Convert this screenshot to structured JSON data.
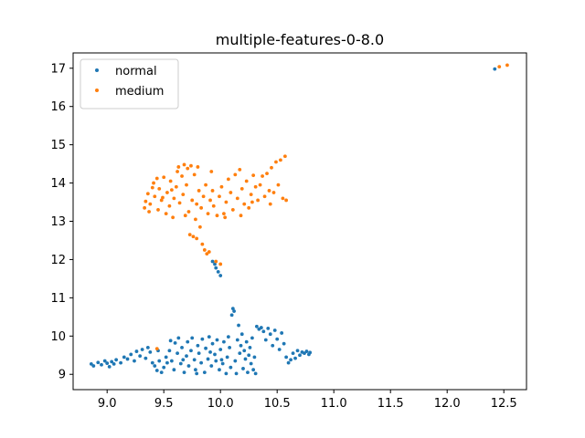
{
  "chart_data": {
    "type": "scatter",
    "title": "multiple-features-0-8.0",
    "xlabel": "",
    "ylabel": "",
    "xlim": [
      8.7,
      12.7
    ],
    "ylim": [
      8.6,
      17.4
    ],
    "xticks": [
      "9.0",
      "9.5",
      "10.0",
      "10.5",
      "11.0",
      "11.5",
      "12.0",
      "12.5"
    ],
    "yticks": [
      "9",
      "10",
      "11",
      "12",
      "13",
      "14",
      "15",
      "16",
      "17"
    ],
    "grid": false,
    "legend": {
      "position": "top-left",
      "entries": [
        "normal",
        "medium"
      ]
    },
    "series": [
      {
        "name": "normal",
        "color": "#1f77b4",
        "points": [
          [
            8.86,
            9.27
          ],
          [
            8.88,
            9.22
          ],
          [
            8.92,
            9.31
          ],
          [
            8.95,
            9.25
          ],
          [
            8.98,
            9.35
          ],
          [
            9.0,
            9.29
          ],
          [
            9.02,
            9.2
          ],
          [
            9.04,
            9.33
          ],
          [
            9.06,
            9.27
          ],
          [
            9.08,
            9.38
          ],
          [
            9.12,
            9.3
          ],
          [
            9.15,
            9.45
          ],
          [
            9.18,
            9.4
          ],
          [
            9.21,
            9.52
          ],
          [
            9.24,
            9.35
          ],
          [
            9.26,
            9.6
          ],
          [
            9.29,
            9.48
          ],
          [
            9.31,
            9.65
          ],
          [
            9.34,
            9.42
          ],
          [
            9.36,
            9.7
          ],
          [
            9.38,
            9.58
          ],
          [
            9.4,
            9.3
          ],
          [
            9.42,
            9.22
          ],
          [
            9.44,
            9.1
          ],
          [
            9.46,
            9.35
          ],
          [
            9.48,
            9.05
          ],
          [
            9.5,
            9.18
          ],
          [
            9.52,
            9.45
          ],
          [
            9.55,
            9.62
          ],
          [
            9.57,
            9.35
          ],
          [
            9.59,
            9.12
          ],
          [
            9.6,
            9.82
          ],
          [
            9.62,
            9.55
          ],
          [
            9.63,
            9.95
          ],
          [
            9.65,
            9.28
          ],
          [
            9.66,
            9.7
          ],
          [
            9.68,
            9.05
          ],
          [
            9.7,
            9.48
          ],
          [
            9.71,
            9.85
          ],
          [
            9.72,
            9.22
          ],
          [
            9.74,
            9.62
          ],
          [
            9.75,
            9.95
          ],
          [
            9.77,
            9.38
          ],
          [
            9.78,
            9.12
          ],
          [
            9.8,
            9.75
          ],
          [
            9.81,
            9.55
          ],
          [
            9.83,
            9.3
          ],
          [
            9.84,
            9.92
          ],
          [
            9.86,
            9.05
          ],
          [
            9.87,
            9.68
          ],
          [
            9.89,
            9.4
          ],
          [
            9.9,
            9.98
          ],
          [
            9.92,
            9.22
          ],
          [
            9.93,
            9.8
          ],
          [
            9.95,
            9.52
          ],
          [
            9.96,
            9.35
          ],
          [
            9.97,
            9.9
          ],
          [
            9.99,
            9.12
          ],
          [
            10.0,
            9.65
          ],
          [
            10.02,
            9.28
          ],
          [
            10.03,
            9.85
          ],
          [
            10.05,
            9.02
          ],
          [
            10.06,
            9.45
          ],
          [
            10.08,
            9.7
          ],
          [
            10.09,
            9.18
          ],
          [
            10.1,
            10.55
          ],
          [
            10.11,
            10.72
          ],
          [
            10.12,
            10.65
          ],
          [
            10.13,
            9.35
          ],
          [
            10.14,
            9.02
          ],
          [
            10.15,
            9.9
          ],
          [
            10.16,
            10.28
          ],
          [
            10.17,
            9.55
          ],
          [
            10.18,
            9.75
          ],
          [
            10.19,
            10.05
          ],
          [
            10.2,
            9.15
          ],
          [
            10.21,
            9.62
          ],
          [
            10.22,
            9.4
          ],
          [
            10.23,
            9.85
          ],
          [
            10.24,
            9.05
          ],
          [
            10.25,
            9.5
          ],
          [
            10.26,
            9.7
          ],
          [
            10.27,
            9.28
          ],
          [
            10.28,
            9.95
          ],
          [
            10.29,
            9.12
          ],
          [
            10.3,
            9.45
          ],
          [
            10.31,
            9.02
          ],
          [
            10.32,
            10.25
          ],
          [
            10.34,
            10.18
          ],
          [
            10.36,
            10.22
          ],
          [
            10.38,
            10.12
          ],
          [
            10.4,
            9.9
          ],
          [
            10.42,
            10.2
          ],
          [
            10.44,
            10.05
          ],
          [
            10.46,
            9.75
          ],
          [
            10.48,
            10.15
          ],
          [
            10.5,
            9.92
          ],
          [
            10.52,
            9.65
          ],
          [
            10.54,
            10.08
          ],
          [
            10.56,
            9.8
          ],
          [
            10.58,
            9.45
          ],
          [
            10.6,
            9.3
          ],
          [
            10.62,
            9.38
          ],
          [
            10.64,
            9.55
          ],
          [
            10.66,
            9.42
          ],
          [
            10.68,
            9.62
          ],
          [
            10.7,
            9.5
          ],
          [
            10.72,
            9.58
          ],
          [
            10.74,
            9.55
          ],
          [
            10.76,
            9.6
          ],
          [
            10.78,
            9.52
          ],
          [
            10.79,
            9.57
          ],
          [
            9.45,
            9.62
          ],
          [
            9.53,
            9.3
          ],
          [
            9.67,
            9.38
          ],
          [
            9.79,
            9.02
          ],
          [
            9.91,
            9.58
          ],
          [
            10.01,
            9.38
          ],
          [
            10.07,
            9.98
          ],
          [
            9.56,
            9.88
          ],
          [
            9.95,
            11.88
          ],
          [
            9.96,
            11.78
          ],
          [
            9.98,
            11.68
          ],
          [
            10.0,
            11.58
          ],
          [
            9.93,
            11.95
          ],
          [
            12.42,
            16.98
          ]
        ]
      },
      {
        "name": "medium",
        "color": "#ff7f0e",
        "points": [
          [
            9.33,
            13.35
          ],
          [
            9.34,
            13.52
          ],
          [
            9.36,
            13.72
          ],
          [
            9.38,
            13.45
          ],
          [
            9.4,
            13.88
          ],
          [
            9.41,
            14.0
          ],
          [
            9.42,
            13.65
          ],
          [
            9.44,
            14.12
          ],
          [
            9.45,
            13.3
          ],
          [
            9.46,
            13.85
          ],
          [
            9.48,
            13.55
          ],
          [
            9.5,
            14.15
          ],
          [
            9.52,
            13.2
          ],
          [
            9.53,
            13.75
          ],
          [
            9.55,
            13.4
          ],
          [
            9.56,
            14.05
          ],
          [
            9.58,
            13.1
          ],
          [
            9.59,
            13.6
          ],
          [
            9.61,
            13.9
          ],
          [
            9.62,
            14.3
          ],
          [
            9.63,
            14.42
          ],
          [
            9.64,
            13.48
          ],
          [
            9.66,
            14.18
          ],
          [
            9.67,
            13.7
          ],
          [
            9.68,
            14.48
          ],
          [
            9.7,
            13.95
          ],
          [
            9.71,
            14.38
          ],
          [
            9.72,
            13.25
          ],
          [
            9.73,
            12.65
          ],
          [
            9.74,
            14.45
          ],
          [
            9.75,
            13.55
          ],
          [
            9.76,
            12.6
          ],
          [
            9.77,
            14.22
          ],
          [
            9.78,
            13.05
          ],
          [
            9.79,
            12.55
          ],
          [
            9.8,
            14.42
          ],
          [
            9.81,
            13.8
          ],
          [
            9.82,
            12.85
          ],
          [
            9.83,
            13.35
          ],
          [
            9.84,
            12.4
          ],
          [
            9.85,
            13.65
          ],
          [
            9.86,
            12.25
          ],
          [
            9.87,
            13.95
          ],
          [
            9.88,
            12.15
          ],
          [
            9.89,
            13.2
          ],
          [
            9.9,
            12.2
          ],
          [
            9.91,
            13.55
          ],
          [
            9.93,
            13.8
          ],
          [
            9.94,
            13.4
          ],
          [
            9.96,
            11.95
          ],
          [
            9.97,
            13.15
          ],
          [
            9.99,
            13.65
          ],
          [
            10.0,
            11.88
          ],
          [
            10.01,
            13.9
          ],
          [
            10.03,
            13.2
          ],
          [
            10.05,
            13.5
          ],
          [
            10.07,
            14.1
          ],
          [
            10.09,
            13.75
          ],
          [
            10.11,
            13.3
          ],
          [
            10.13,
            14.22
          ],
          [
            10.15,
            13.6
          ],
          [
            10.17,
            14.35
          ],
          [
            10.19,
            13.85
          ],
          [
            10.21,
            13.45
          ],
          [
            10.23,
            14.05
          ],
          [
            10.25,
            13.35
          ],
          [
            10.27,
            13.7
          ],
          [
            10.29,
            14.2
          ],
          [
            10.31,
            13.9
          ],
          [
            10.33,
            13.55
          ],
          [
            10.35,
            13.95
          ],
          [
            10.37,
            14.18
          ],
          [
            10.39,
            13.65
          ],
          [
            10.41,
            14.25
          ],
          [
            10.43,
            13.8
          ],
          [
            10.45,
            14.4
          ],
          [
            10.47,
            13.75
          ],
          [
            10.49,
            14.55
          ],
          [
            10.51,
            13.95
          ],
          [
            10.53,
            14.6
          ],
          [
            10.55,
            13.6
          ],
          [
            10.57,
            14.7
          ],
          [
            10.58,
            13.55
          ],
          [
            9.37,
            13.25
          ],
          [
            9.49,
            13.62
          ],
          [
            9.57,
            13.82
          ],
          [
            9.69,
            13.15
          ],
          [
            9.79,
            13.45
          ],
          [
            9.92,
            14.3
          ],
          [
            10.04,
            13.1
          ],
          [
            10.18,
            13.15
          ],
          [
            10.28,
            13.5
          ],
          [
            10.44,
            13.45
          ],
          [
            9.44,
            9.67
          ],
          [
            12.46,
            17.04
          ],
          [
            12.53,
            17.08
          ]
        ]
      }
    ]
  }
}
